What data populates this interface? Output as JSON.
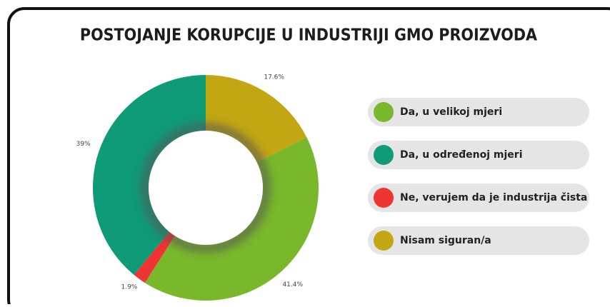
{
  "chart_data": {
    "type": "pie",
    "title": "POSTOJANJE KORUPCIJE U INDUSTRIJI GMO PROIZVODA",
    "categories": [
      "Nisam siguran/a",
      "Da, u velikoj mjeri",
      "Ne, verujem da je industrija čista",
      "Da, u određenoj mjeri"
    ],
    "values": [
      17.6,
      41.4,
      1.9,
      39
    ],
    "value_labels": [
      "17.6%",
      "41.4%",
      "1.9%",
      "39%"
    ],
    "colors": [
      "#c2a712",
      "#79b72b",
      "#ef3434",
      "#0f9a78"
    ]
  }
}
